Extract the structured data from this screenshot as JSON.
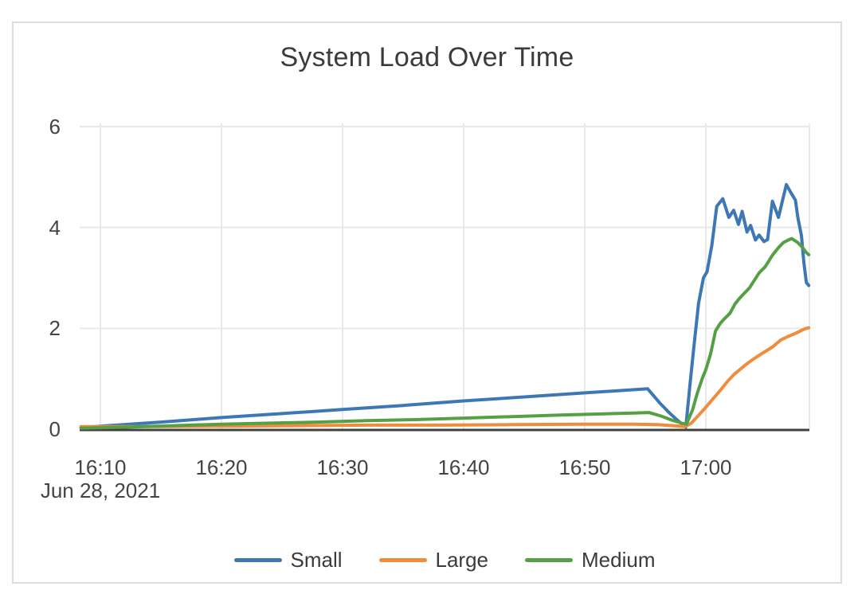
{
  "title": "System Load Over Time",
  "colors": {
    "small": "#3e78b4",
    "large": "#f08c3d",
    "medium": "#55a047",
    "axis_line": "#404040",
    "gridline": "#e9e9e9",
    "tick_text": "#444444",
    "title_text": "#3b3b3b",
    "card_border": "#dcdcdc",
    "background": "#ffffff"
  },
  "chart_data": {
    "type": "line",
    "title": "System Load Over Time",
    "xlabel": "",
    "ylabel": "",
    "grid": true,
    "legend_position": "bottom-center",
    "x_axis": {
      "date_label": "Jun 28, 2021",
      "unit": "minutes after 16:00",
      "range_minutes": [
        8.4,
        68.5
      ],
      "ticks": [
        {
          "label": "16:10",
          "t": 10
        },
        {
          "label": "16:20",
          "t": 20
        },
        {
          "label": "16:30",
          "t": 30
        },
        {
          "label": "16:40",
          "t": 40
        },
        {
          "label": "16:50",
          "t": 50
        },
        {
          "label": "17:00",
          "t": 60
        }
      ]
    },
    "y_axis": {
      "range": [
        0,
        6.1
      ],
      "ticks": [
        {
          "label": "0",
          "v": 0
        },
        {
          "label": "2",
          "v": 2
        },
        {
          "label": "4",
          "v": 4
        },
        {
          "label": "6",
          "v": 6
        }
      ]
    },
    "series": [
      {
        "name": "Small",
        "color": "#3e78b4",
        "points": [
          [
            8.4,
            0.03
          ],
          [
            10,
            0.06
          ],
          [
            15,
            0.14
          ],
          [
            20,
            0.23
          ],
          [
            25,
            0.31
          ],
          [
            30,
            0.39
          ],
          [
            35,
            0.47
          ],
          [
            40,
            0.56
          ],
          [
            45,
            0.64
          ],
          [
            50,
            0.72
          ],
          [
            55.2,
            0.8
          ],
          [
            56.2,
            0.52
          ],
          [
            57,
            0.32
          ],
          [
            57.6,
            0.19
          ],
          [
            58,
            0.11
          ],
          [
            58.35,
            0.04
          ],
          [
            58.7,
            0.9
          ],
          [
            59,
            1.6
          ],
          [
            59.4,
            2.5
          ],
          [
            59.8,
            3.0
          ],
          [
            60.1,
            3.12
          ],
          [
            60.5,
            3.65
          ],
          [
            60.9,
            4.42
          ],
          [
            61.4,
            4.57
          ],
          [
            61.9,
            4.2
          ],
          [
            62.3,
            4.34
          ],
          [
            62.7,
            4.06
          ],
          [
            63,
            4.32
          ],
          [
            63.4,
            3.91
          ],
          [
            63.7,
            4.04
          ],
          [
            64.1,
            3.75
          ],
          [
            64.4,
            3.85
          ],
          [
            64.8,
            3.72
          ],
          [
            65.1,
            3.76
          ],
          [
            65.5,
            4.52
          ],
          [
            66,
            4.2
          ],
          [
            66.35,
            4.55
          ],
          [
            66.65,
            4.85
          ],
          [
            67,
            4.7
          ],
          [
            67.4,
            4.54
          ],
          [
            67.6,
            4.2
          ],
          [
            67.9,
            3.83
          ],
          [
            68.1,
            3.3
          ],
          [
            68.3,
            2.91
          ],
          [
            68.5,
            2.85
          ]
        ]
      },
      {
        "name": "Large",
        "color": "#f08c3d",
        "points": [
          [
            8.4,
            0.05
          ],
          [
            14,
            0.05
          ],
          [
            20,
            0.06
          ],
          [
            26,
            0.07
          ],
          [
            32,
            0.08
          ],
          [
            38,
            0.08
          ],
          [
            44,
            0.09
          ],
          [
            50,
            0.1
          ],
          [
            54,
            0.1
          ],
          [
            56,
            0.09
          ],
          [
            57.3,
            0.07
          ],
          [
            58.3,
            0.05
          ],
          [
            58.8,
            0.12
          ],
          [
            59.3,
            0.25
          ],
          [
            59.8,
            0.38
          ],
          [
            60.3,
            0.52
          ],
          [
            60.8,
            0.66
          ],
          [
            61.3,
            0.8
          ],
          [
            61.8,
            0.95
          ],
          [
            62.3,
            1.08
          ],
          [
            62.8,
            1.18
          ],
          [
            63.4,
            1.3
          ],
          [
            64,
            1.4
          ],
          [
            64.5,
            1.48
          ],
          [
            64.9,
            1.54
          ],
          [
            65.5,
            1.63
          ],
          [
            66.2,
            1.77
          ],
          [
            66.8,
            1.84
          ],
          [
            67.4,
            1.9
          ],
          [
            67.9,
            1.96
          ],
          [
            68.3,
            2.0
          ],
          [
            68.5,
            2.01
          ]
        ]
      },
      {
        "name": "Medium",
        "color": "#55a047",
        "points": [
          [
            8.4,
            0.02
          ],
          [
            12,
            0.04
          ],
          [
            16,
            0.07
          ],
          [
            20,
            0.1
          ],
          [
            24,
            0.12
          ],
          [
            28,
            0.14
          ],
          [
            32,
            0.17
          ],
          [
            36,
            0.19
          ],
          [
            40,
            0.22
          ],
          [
            44,
            0.25
          ],
          [
            48,
            0.28
          ],
          [
            51,
            0.3
          ],
          [
            54,
            0.32
          ],
          [
            55.3,
            0.33
          ],
          [
            56.3,
            0.26
          ],
          [
            57.2,
            0.18
          ],
          [
            58,
            0.12
          ],
          [
            58.4,
            0.1
          ],
          [
            58.9,
            0.38
          ],
          [
            59.3,
            0.72
          ],
          [
            59.7,
            1.0
          ],
          [
            60,
            1.18
          ],
          [
            60.4,
            1.5
          ],
          [
            60.8,
            1.95
          ],
          [
            61.2,
            2.1
          ],
          [
            61.5,
            2.18
          ],
          [
            62,
            2.3
          ],
          [
            62.4,
            2.48
          ],
          [
            62.8,
            2.6
          ],
          [
            63.2,
            2.7
          ],
          [
            63.6,
            2.8
          ],
          [
            64,
            2.95
          ],
          [
            64.4,
            3.1
          ],
          [
            64.9,
            3.22
          ],
          [
            65.5,
            3.45
          ],
          [
            66,
            3.6
          ],
          [
            66.4,
            3.7
          ],
          [
            66.8,
            3.75
          ],
          [
            67.1,
            3.78
          ],
          [
            67.6,
            3.7
          ],
          [
            68,
            3.6
          ],
          [
            68.3,
            3.5
          ],
          [
            68.5,
            3.46
          ]
        ]
      }
    ]
  }
}
